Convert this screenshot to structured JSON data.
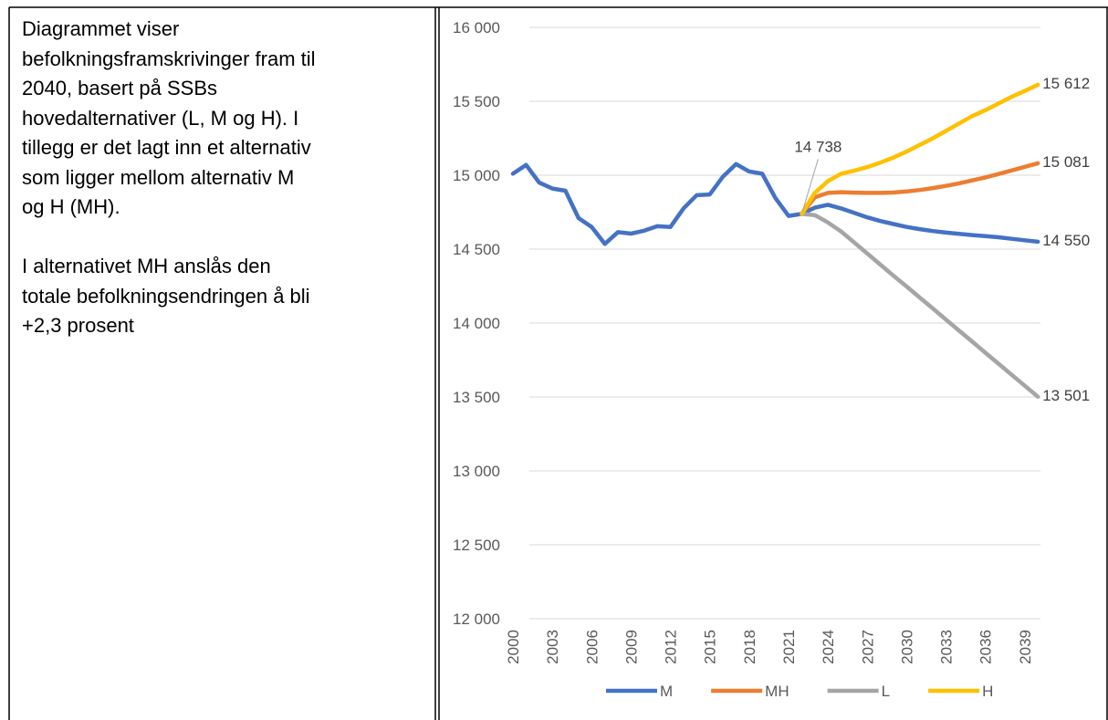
{
  "document": {
    "paragraphs": [
      [
        "Diagrammet viser",
        "befolkningsframskrivinger fram til",
        "2040, basert på SSBs",
        "hovedalternativer (L, M og H). I",
        "tillegg er det lagt inn et alternativ",
        "som ligger mellom alternativ M",
        "og H (MH)."
      ],
      [
        "I alternativet MH anslås den",
        "totale befolkningsendringen å bli",
        "+2,3 prosent"
      ]
    ]
  },
  "chart_data": {
    "type": "line",
    "categories": [
      "2000",
      null,
      null,
      "2003",
      null,
      null,
      "2006",
      null,
      null,
      "2009",
      null,
      null,
      "2012",
      null,
      null,
      "2015",
      null,
      null,
      "2018",
      null,
      null,
      "2021",
      null,
      null,
      "2024",
      null,
      null,
      "2027",
      null,
      null,
      "2030",
      null,
      null,
      "2033",
      null,
      null,
      "2036",
      null,
      null,
      "2039",
      null
    ],
    "ylim": [
      12000,
      16000
    ],
    "yticks": [
      {
        "value": 12000,
        "label": "12 000"
      },
      {
        "value": 12500,
        "label": "12 500"
      },
      {
        "value": 13000,
        "label": "13 000"
      },
      {
        "value": 13500,
        "label": "13 500"
      },
      {
        "value": 14000,
        "label": "14 000"
      },
      {
        "value": 14500,
        "label": "14 500"
      },
      {
        "value": 15000,
        "label": "15 000"
      },
      {
        "value": 15500,
        "label": "15 500"
      },
      {
        "value": 16000,
        "label": "16 000"
      }
    ],
    "grid": true,
    "legend": "bottom",
    "series": [
      {
        "name": "M",
        "color": "#4472c4",
        "values": [
          15010,
          15070,
          14950,
          14910,
          14895,
          14710,
          14650,
          14535,
          14615,
          14605,
          14625,
          14655,
          14650,
          14775,
          14865,
          14870,
          14990,
          15075,
          15025,
          15010,
          14845,
          14725,
          14738,
          14780,
          14800,
          14775,
          14745,
          14715,
          14690,
          14670,
          14650,
          14635,
          14622,
          14612,
          14603,
          14595,
          14588,
          14580,
          14570,
          14560,
          14550
        ],
        "value_labels": [
          null,
          null,
          null,
          null,
          null,
          null,
          null,
          null,
          null,
          null,
          null,
          null,
          null,
          null,
          null,
          null,
          null,
          null,
          null,
          null,
          null,
          null,
          "14 738",
          null,
          null,
          null,
          null,
          null,
          null,
          null,
          null,
          null,
          null,
          null,
          null,
          null,
          null,
          null,
          null,
          null,
          "14 550"
        ]
      },
      {
        "name": "MH",
        "color": "#ed7d31",
        "values": [
          null,
          null,
          null,
          null,
          null,
          null,
          null,
          null,
          null,
          null,
          null,
          null,
          null,
          null,
          null,
          null,
          null,
          null,
          null,
          null,
          null,
          null,
          14738,
          14850,
          14880,
          14885,
          14882,
          14880,
          14880,
          14883,
          14890,
          14900,
          14913,
          14928,
          14945,
          14965,
          14985,
          15008,
          15032,
          15057,
          15081
        ],
        "value_labels": [
          null,
          null,
          null,
          null,
          null,
          null,
          null,
          null,
          null,
          null,
          null,
          null,
          null,
          null,
          null,
          null,
          null,
          null,
          null,
          null,
          null,
          null,
          null,
          null,
          null,
          null,
          null,
          null,
          null,
          null,
          null,
          null,
          null,
          null,
          null,
          null,
          null,
          null,
          null,
          null,
          "15 081"
        ]
      },
      {
        "name": "L",
        "color": "#a5a5a5",
        "values": [
          null,
          null,
          null,
          null,
          null,
          null,
          null,
          null,
          null,
          null,
          null,
          null,
          null,
          null,
          null,
          null,
          null,
          null,
          null,
          null,
          null,
          null,
          14738,
          14730,
          14680,
          14620,
          14545,
          14470,
          14395,
          14320,
          14247,
          14172,
          14098,
          14023,
          13948,
          13874,
          13799,
          13725,
          13650,
          13576,
          13501
        ],
        "value_labels": [
          null,
          null,
          null,
          null,
          null,
          null,
          null,
          null,
          null,
          null,
          null,
          null,
          null,
          null,
          null,
          null,
          null,
          null,
          null,
          null,
          null,
          null,
          null,
          null,
          null,
          null,
          null,
          null,
          null,
          null,
          null,
          null,
          null,
          null,
          null,
          null,
          null,
          null,
          null,
          null,
          "13 501"
        ]
      },
      {
        "name": "H",
        "color": "#ffc000",
        "values": [
          null,
          null,
          null,
          null,
          null,
          null,
          null,
          null,
          null,
          null,
          null,
          null,
          null,
          null,
          null,
          null,
          null,
          null,
          null,
          null,
          null,
          null,
          14738,
          14880,
          14960,
          15010,
          15030,
          15055,
          15085,
          15120,
          15160,
          15205,
          15250,
          15300,
          15350,
          15400,
          15440,
          15485,
          15530,
          15570,
          15612
        ],
        "value_labels": [
          null,
          null,
          null,
          null,
          null,
          null,
          null,
          null,
          null,
          null,
          null,
          null,
          null,
          null,
          null,
          null,
          null,
          null,
          null,
          null,
          null,
          null,
          null,
          null,
          null,
          null,
          null,
          null,
          null,
          null,
          null,
          null,
          null,
          null,
          null,
          null,
          null,
          null,
          null,
          null,
          "15 612"
        ]
      }
    ]
  }
}
